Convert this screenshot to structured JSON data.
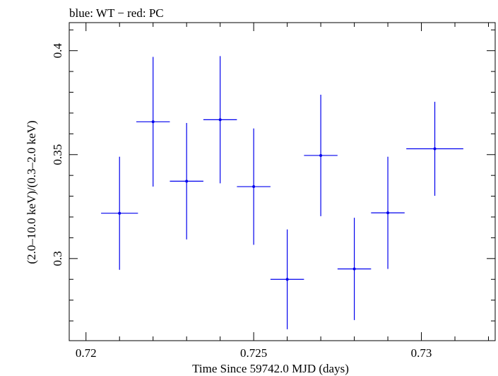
{
  "chart_data": {
    "type": "scatter",
    "title": "blue: WT − red: PC",
    "xlabel": "Time Since 59742.0 MJD (days)",
    "ylabel": "(2.0–10.0 keV)/(0.3–2.0 keV)",
    "xlim": [
      0.7195,
      0.7322
    ],
    "ylim": [
      0.2605,
      0.4135
    ],
    "x_ticks": [
      {
        "value": 0.72,
        "label": "0.72"
      },
      {
        "value": 0.725,
        "label": "0.725"
      },
      {
        "value": 0.73,
        "label": "0.73"
      }
    ],
    "y_ticks": [
      {
        "value": 0.3,
        "label": "0.3"
      },
      {
        "value": 0.35,
        "label": "0.35"
      },
      {
        "value": 0.4,
        "label": "0.4"
      }
    ],
    "grid": false,
    "series": [
      {
        "color": "#0000ee",
        "points": [
          {
            "x": 0.721,
            "xerr": 0.00055,
            "y": 0.3218,
            "yerr": 0.0272
          },
          {
            "x": 0.722,
            "xerr": 0.0005,
            "y": 0.3658,
            "yerr": 0.0312
          },
          {
            "x": 0.723,
            "xerr": 0.0005,
            "y": 0.3372,
            "yerr": 0.028
          },
          {
            "x": 0.724,
            "xerr": 0.0005,
            "y": 0.3668,
            "yerr": 0.0306
          },
          {
            "x": 0.725,
            "xerr": 0.0005,
            "y": 0.3346,
            "yerr": 0.028
          },
          {
            "x": 0.726,
            "xerr": 0.0005,
            "y": 0.29,
            "yerr": 0.024
          },
          {
            "x": 0.727,
            "xerr": 0.0005,
            "y": 0.3496,
            "yerr": 0.0292
          },
          {
            "x": 0.728,
            "xerr": 0.0005,
            "y": 0.295,
            "yerr": 0.0246
          },
          {
            "x": 0.729,
            "xerr": 0.0005,
            "y": 0.322,
            "yerr": 0.027
          },
          {
            "x": 0.7304,
            "xerr": 0.00085,
            "y": 0.3528,
            "yerr": 0.0226
          }
        ]
      }
    ]
  }
}
